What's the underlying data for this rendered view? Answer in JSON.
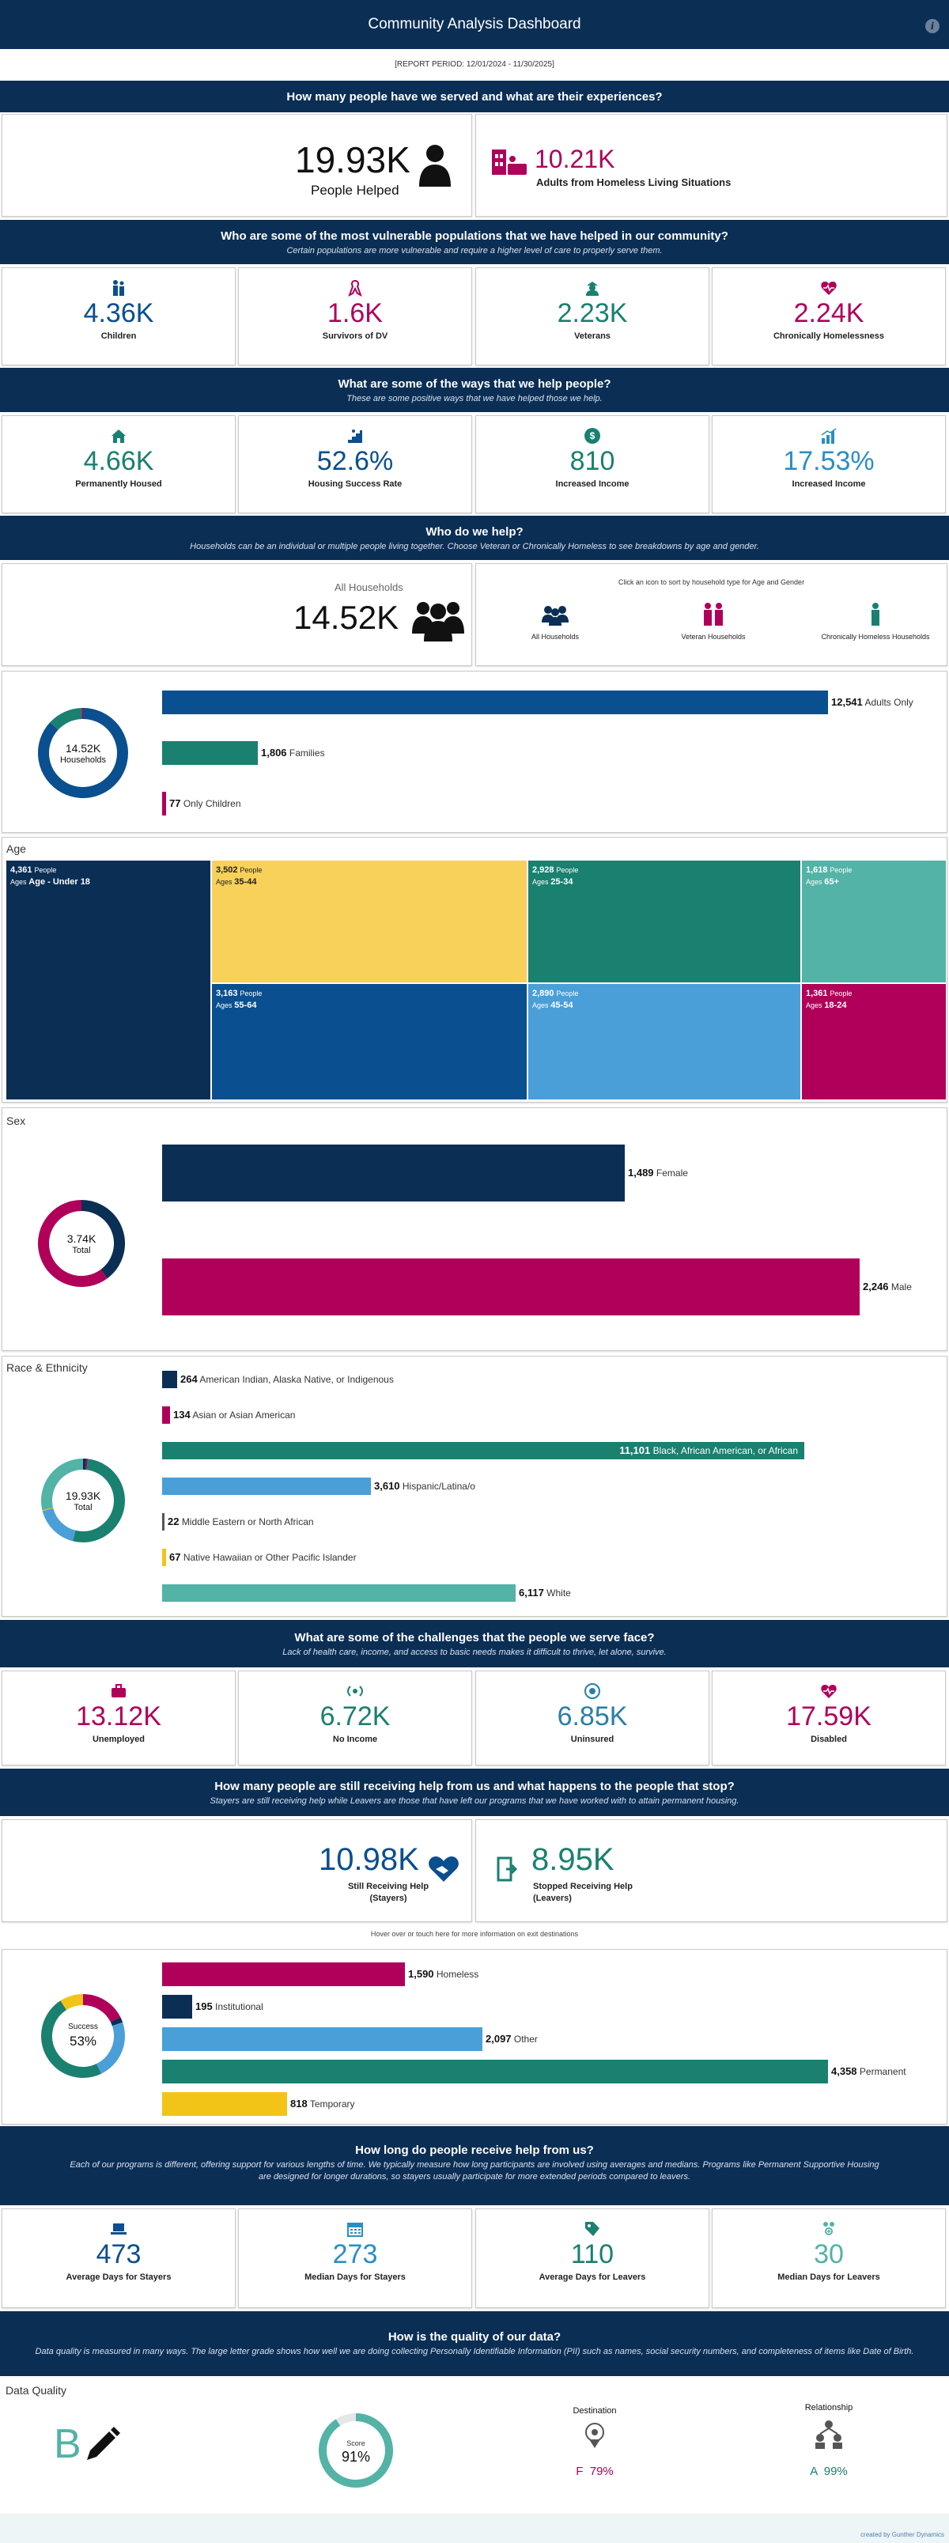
{
  "header": {
    "title": "Community Analysis Dashboard",
    "period": "[REPORT PERIOD: 12/01/2024 - 11/30/2025]"
  },
  "s1": {
    "question": "How many people have we served and what are their experiences?",
    "people_value": "19.93K",
    "people_label": "People Helped",
    "homeless_value": "10.21K",
    "homeless_label": "Adults from Homeless Living Situations"
  },
  "s2": {
    "question": "Who are some of the most vulnerable populations that we have helped in our community?",
    "sub": "Certain populations are more vulnerable and require a higher level of care to properly serve them.",
    "kpis": [
      {
        "value": "4.36K",
        "label": "Children",
        "icon": "children-icon"
      },
      {
        "value": "1.6K",
        "label": "Survivors of DV",
        "icon": "ribbon-icon"
      },
      {
        "value": "2.23K",
        "label": "Veterans",
        "icon": "veteran-icon"
      },
      {
        "value": "2.24K",
        "label": "Chronically Homelessness",
        "icon": "heart-icon"
      }
    ]
  },
  "s3": {
    "question": "What are some of the ways that we help people?",
    "sub": "These are some positive ways that we have helped those we help.",
    "kpis": [
      {
        "value": "4.66K",
        "label": "Permanently Housed",
        "icon": "house-icon"
      },
      {
        "value": "52.6%",
        "label": "Housing Success Rate",
        "icon": "stairs-icon"
      },
      {
        "value": "810",
        "label": "Increased Income",
        "icon": "dollar-icon"
      },
      {
        "value": "17.53%",
        "label": "Increased Income",
        "icon": "bar-chart-icon"
      }
    ]
  },
  "s4": {
    "question": "Who do we help?",
    "sub": "Households can be an individual or multiple people living together.  Choose Veteran or Chronically Homeless to see breakdowns by age and  gender.",
    "all_label": "All Households",
    "all_value": "14.52K",
    "sort_note": "Click an icon to sort by household type for Age and Gender",
    "options": [
      "All Households",
      "Veteran Households",
      "Chronically Homeless Households"
    ]
  },
  "household": {
    "donut_value": "14.52K",
    "donut_label": "Households",
    "rows": [
      {
        "value": 12541,
        "display": "12,541",
        "label": "Adults Only",
        "color": "#0a4f8f"
      },
      {
        "value": 1806,
        "display": "1,806",
        "label": "Families",
        "color": "#1a8070"
      },
      {
        "value": 77,
        "display": "77",
        "label": "Only Children",
        "color": "#b0005a"
      }
    ]
  },
  "age": {
    "title": "Age",
    "cells": [
      {
        "people": "4,361",
        "unit": "People",
        "ages_label": "Ages",
        "ages": "Age - Under 18",
        "color": "#0b2e55"
      },
      {
        "people": "3,502",
        "unit": "People",
        "ages_label": "Ages",
        "ages": "35-44",
        "color": "#f7d15a"
      },
      {
        "people": "2,928",
        "unit": "People",
        "ages_label": "Ages",
        "ages": "25-34",
        "color": "#1a8070"
      },
      {
        "people": "1,618",
        "unit": "People",
        "ages_label": "Ages",
        "ages": "65+",
        "color": "#52b3a6"
      },
      {
        "people": "3,163",
        "unit": "People",
        "ages_label": "Ages",
        "ages": "55-64",
        "color": "#0a4f8f"
      },
      {
        "people": "2,890",
        "unit": "People",
        "ages_label": "Ages",
        "ages": "45-54",
        "color": "#4a9fd8"
      },
      {
        "people": "1,361",
        "unit": "People",
        "ages_label": "Ages",
        "ages": "18-24",
        "color": "#b0005a"
      }
    ]
  },
  "sex": {
    "title": "Sex",
    "donut_value": "3.74K",
    "donut_label": "Total",
    "rows": [
      {
        "value": 1489,
        "display": "1,489",
        "label": "Female",
        "color": "#0b2e55"
      },
      {
        "value": 2246,
        "display": "2,246",
        "label": "Male",
        "color": "#b0005a"
      }
    ]
  },
  "race": {
    "title": "Race & Ethnicity",
    "donut_value": "19.93K",
    "donut_label": "Total",
    "rows": [
      {
        "value": 264,
        "display": "264",
        "label": "American Indian, Alaska Native, or Indigenous",
        "color": "#0b2e55"
      },
      {
        "value": 134,
        "display": "134",
        "label": "Asian or Asian American",
        "color": "#b0005a"
      },
      {
        "value": 11101,
        "display": "11,101",
        "label": "Black, African American, or African",
        "color": "#1a8070"
      },
      {
        "value": 3610,
        "display": "3,610",
        "label": "Hispanic/Latina/o",
        "color": "#4a9fd8"
      },
      {
        "value": 22,
        "display": "22",
        "label": "Middle Eastern or North African",
        "color": "#555555"
      },
      {
        "value": 67,
        "display": "67",
        "label": "Native Hawaiian or Other Pacific Islander",
        "color": "#f2c418"
      },
      {
        "value": 6117,
        "display": "6,117",
        "label": "White",
        "color": "#52b3a6"
      }
    ]
  },
  "s5": {
    "question": "What are some of the challenges that the people we serve face?",
    "sub": "Lack of health care, income, and access to basic needs makes it difficult to thrive, let alone, survive.",
    "kpis": [
      {
        "value": "13.12K",
        "label": "Unemployed",
        "icon": "briefcase-icon",
        "color": "#b0005a"
      },
      {
        "value": "6.72K",
        "label": "No Income",
        "icon": "signal-icon",
        "color": "#1a8070"
      },
      {
        "value": "6.85K",
        "label": "Uninsured",
        "icon": "shield-icon",
        "color": "#2a7fa8"
      },
      {
        "value": "17.59K",
        "label": "Disabled",
        "icon": "heartbeat-icon",
        "color": "#b0005a"
      }
    ]
  },
  "s6": {
    "question": "How many people are still receiving help from us and what happens to the people that stop?",
    "sub": "Stayers are still receiving help while Leavers are those that have left our programs that we have worked with to attain permanent housing.",
    "stayers_value": "10.98K",
    "stayers_label1": "Still Receiving Help",
    "stayers_label2": "(Stayers)",
    "leavers_value": "8.95K",
    "leavers_label1": "Stopped Receiving Help",
    "leavers_label2": "(Leavers)",
    "hover_note": "Hover over or touch here for more information on exit destinations"
  },
  "destinations": {
    "donut_title": "Success",
    "donut_value": "53%",
    "rows": [
      {
        "value": 1590,
        "display": "1,590",
        "label": "Homeless",
        "color": "#b0005a"
      },
      {
        "value": 195,
        "display": "195",
        "label": "Institutional",
        "color": "#0b2e55"
      },
      {
        "value": 2097,
        "display": "2,097",
        "label": "Other",
        "color": "#4a9fd8"
      },
      {
        "value": 4358,
        "display": "4,358",
        "label": "Permanent",
        "color": "#1a8070"
      },
      {
        "value": 818,
        "display": "818",
        "label": "Temporary",
        "color": "#f2c418"
      }
    ]
  },
  "s7": {
    "question": "How long do people receive help from us?",
    "sub": "Each of our programs is different, offering support for various lengths of time. We typically measure how long participants are involved using averages and medians. Programs like Permanent Supportive Housing are designed for longer durations, so stayers usually participate for more extended periods compared to leavers.",
    "kpis": [
      {
        "value": "473",
        "label": "Average Days for Stayers",
        "icon": "laptop-icon",
        "color": "#0a4f8f"
      },
      {
        "value": "273",
        "label": "Median Days for Stayers",
        "icon": "calendar-icon",
        "color": "#2a8fc4"
      },
      {
        "value": "110",
        "label": "Average Days for Leavers",
        "icon": "tag-icon",
        "color": "#1a8070"
      },
      {
        "value": "30",
        "label": "Median Days for Leavers",
        "icon": "people-icon",
        "color": "#52b3a6"
      }
    ]
  },
  "s8": {
    "question": "How is the quality of our data?",
    "sub": "Data quality is measured in many ways. The large letter grade shows how well we are doing collecting Personally Identifiable Information (PII) such as names, social security numbers, and completeness of items like Date of Birth."
  },
  "quality": {
    "title": "Data Quality",
    "grade": "B",
    "score_label": "Score",
    "score_value": "91%",
    "destination_label": "Destination",
    "destination_grade": "F  79%",
    "relationship_label": "Relationship",
    "relationship_grade": "A  99%"
  },
  "footer": {
    "credit": "created by Gunther Dynamics"
  }
}
